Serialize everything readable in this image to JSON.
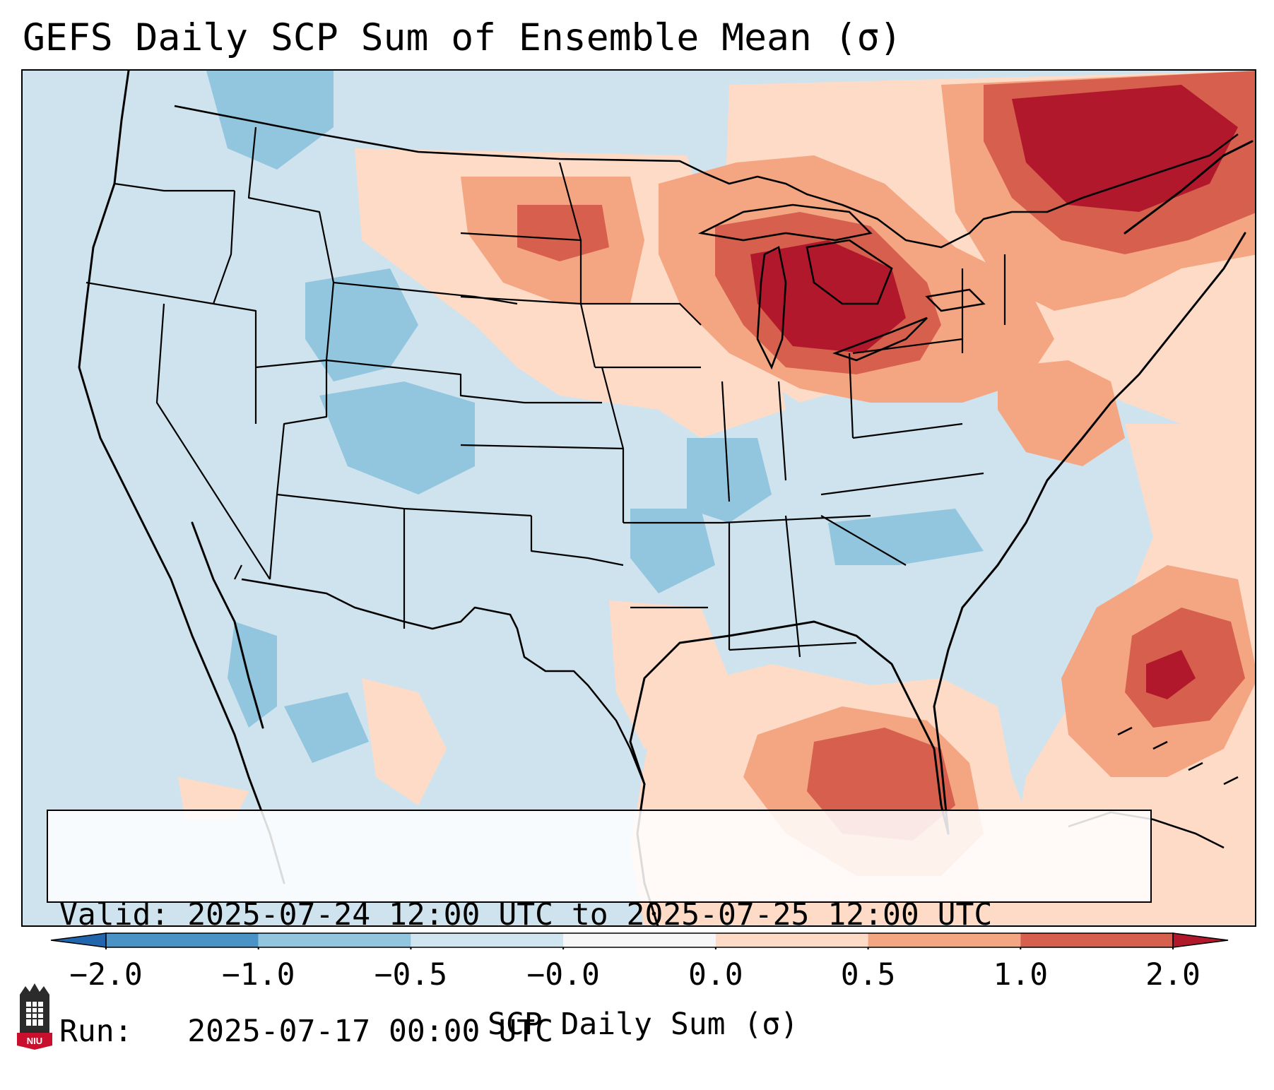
{
  "title": "GEFS Daily SCP Sum of Ensemble Mean (σ)",
  "info": {
    "valid_label": "Valid:",
    "valid_value": "2025-07-24 12:00 UTC to 2025-07-25 12:00 UTC",
    "run_label": "Run:",
    "run_value": "2025-07-17 00:00 UTC"
  },
  "colorbar": {
    "label": "SCP Daily Sum (σ)",
    "ticks": [
      "−2.0",
      "−1.0",
      "−0.5",
      "−0.0",
      "0.0",
      "0.5",
      "1.0",
      "2.0"
    ],
    "bins": [
      {
        "from": -2.0,
        "to": -1.0,
        "color": "#4a93c6"
      },
      {
        "from": -1.0,
        "to": -0.5,
        "color": "#92c5de"
      },
      {
        "from": -0.5,
        "to": -0.0,
        "color": "#d1e5f0"
      },
      {
        "from": -0.0,
        "to": 0.0,
        "color": "#f7f7f7"
      },
      {
        "from": 0.0,
        "to": 0.5,
        "color": "#fddbc7"
      },
      {
        "from": 0.5,
        "to": 1.0,
        "color": "#f4a582"
      },
      {
        "from": 1.0,
        "to": 2.0,
        "color": "#d6604d"
      }
    ],
    "under_color": "#2166ac",
    "over_color": "#b2182b"
  },
  "logo": {
    "text": "NIU",
    "color": "#c8102e"
  },
  "map": {
    "region": "Continental United States",
    "background_color": "#cfe3ef",
    "anomaly_regions": [
      {
        "area": "Great Lakes",
        "level": "strong positive"
      },
      {
        "area": "Southern Quebec",
        "level": "strong positive"
      },
      {
        "area": "Western Atlantic",
        "level": "strong positive"
      },
      {
        "area": "Northeastern Gulf of Mexico",
        "level": "positive"
      },
      {
        "area": "Northern Plains",
        "level": "positive"
      },
      {
        "area": "Great Basin / Central Rockies",
        "level": "negative"
      },
      {
        "area": "Ozarks",
        "level": "negative"
      }
    ]
  }
}
